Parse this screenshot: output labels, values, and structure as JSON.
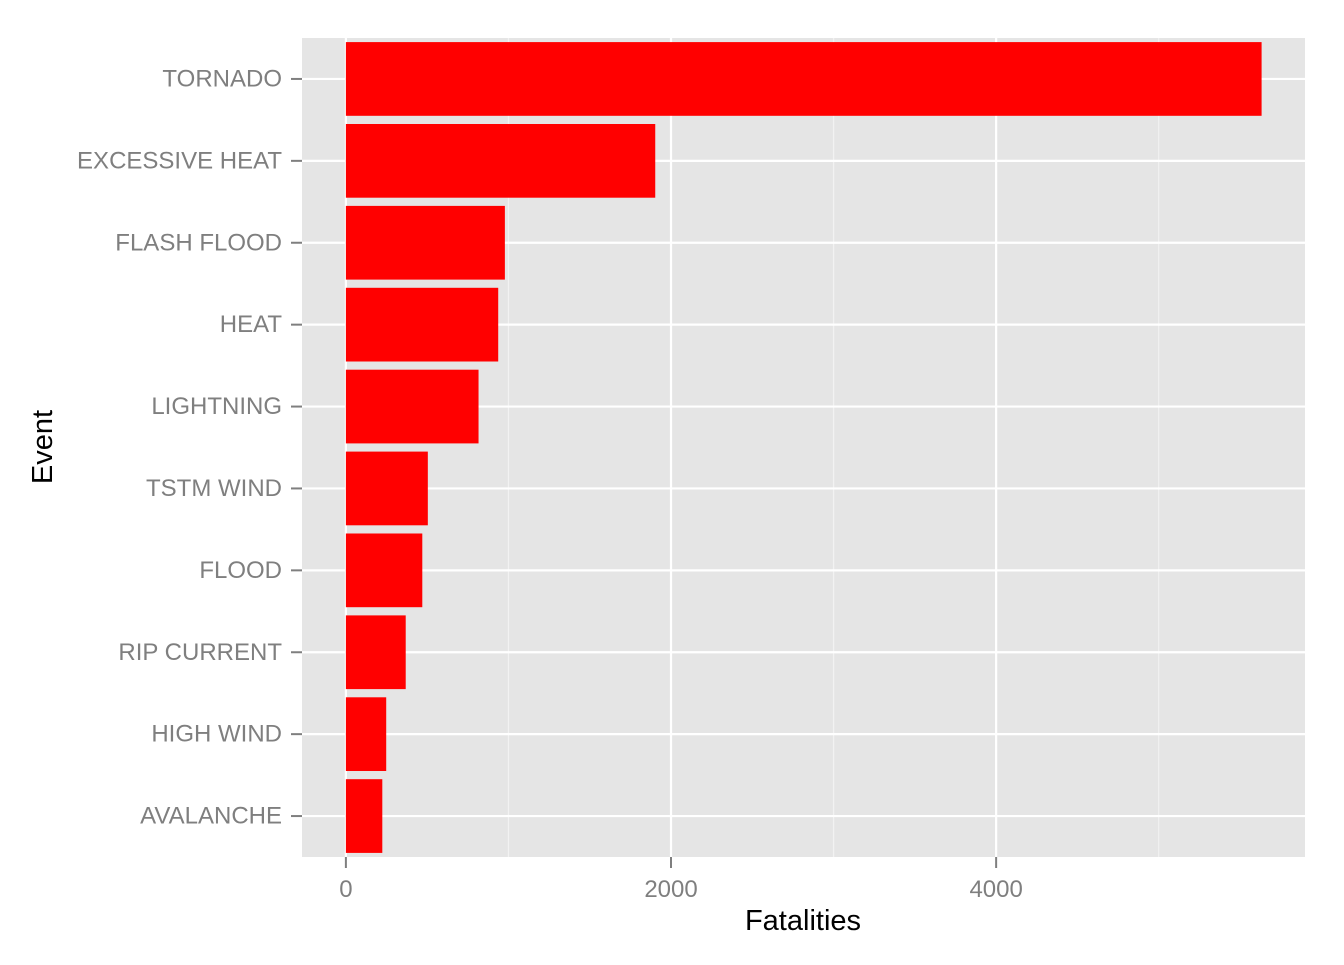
{
  "chart_data": {
    "type": "bar",
    "orientation": "horizontal",
    "xlabel": "Fatalities",
    "ylabel": "Event",
    "categories": [
      "TORNADO",
      "EXCESSIVE HEAT",
      "FLASH FLOOD",
      "HEAT",
      "LIGHTNING",
      "TSTM WIND",
      "FLOOD",
      "RIP CURRENT",
      "HIGH WIND",
      "AVALANCHE"
    ],
    "values": [
      5633,
      1903,
      978,
      937,
      816,
      504,
      470,
      368,
      248,
      224
    ],
    "xlim": [
      -270,
      5900
    ],
    "xticks": [
      0,
      2000,
      4000
    ],
    "xtick_labels": [
      "0",
      "2000",
      "4000"
    ],
    "minor_xticks": [
      1000,
      3000,
      5000
    ],
    "grid": true,
    "legend": false,
    "colors": {
      "bar": "#ff0000",
      "panel": "#e5e5e5",
      "grid_major": "#ffffff",
      "grid_minor": "#f2f2f2",
      "tick_label": "#7f7f7f",
      "axis_title": "#000000"
    }
  }
}
